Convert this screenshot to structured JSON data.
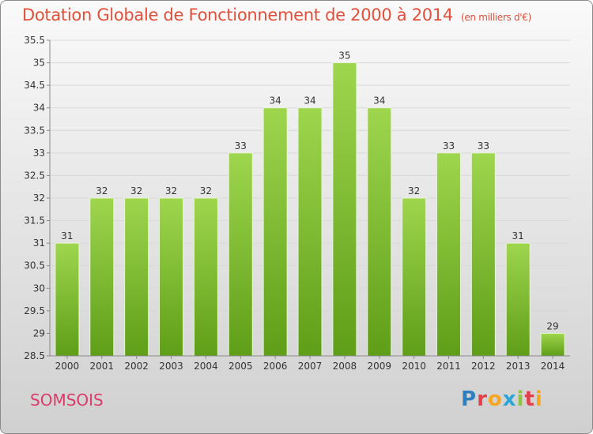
{
  "header": {
    "title": "Dotation Globale de Fonctionnement de 2000 à 2014",
    "unit": "(en milliers d'€)"
  },
  "footer": {
    "commune": "SOMSOIS",
    "brand": {
      "text": "Proxiti",
      "letters": [
        {
          "ch": "P",
          "color": "#2f7fc1"
        },
        {
          "ch": "r",
          "color": "#e2404a"
        },
        {
          "ch": "o",
          "color": "#f5a623"
        },
        {
          "ch": "x",
          "color": "#2aa6d6"
        },
        {
          "ch": "i",
          "color": "#8cc63f"
        },
        {
          "ch": "t",
          "color": "#e2404a"
        },
        {
          "ch": "i",
          "color": "#f5a623"
        }
      ]
    }
  },
  "colors": {
    "title": "#e0503a",
    "commune": "#d93c6a",
    "bar_top": "#9ed64e",
    "bar_bottom": "#5f9e18",
    "grid": "#d8d8d8",
    "axis": "#888888"
  },
  "chart_data": {
    "type": "bar",
    "categories": [
      "2000",
      "2001",
      "2002",
      "2003",
      "2004",
      "2005",
      "2006",
      "2007",
      "2008",
      "2009",
      "2010",
      "2011",
      "2012",
      "2013",
      "2014"
    ],
    "values": [
      31,
      32,
      32,
      32,
      32,
      33,
      34,
      34,
      35,
      34,
      32,
      33,
      33,
      31,
      29
    ],
    "value_labels": [
      "31",
      "32",
      "32",
      "32",
      "32",
      "33",
      "34",
      "34",
      "35",
      "34",
      "32",
      "33",
      "33",
      "31",
      "29"
    ],
    "ylim": [
      28.5,
      35.5
    ],
    "yticks": [
      28.5,
      29,
      29.5,
      30,
      30.5,
      31,
      31.5,
      32,
      32.5,
      33,
      33.5,
      34,
      34.5,
      35,
      35.5
    ],
    "ytick_labels": [
      "28.5",
      "29",
      "29.5",
      "30",
      "30.5",
      "31",
      "31.5",
      "32",
      "32.5",
      "33",
      "33.5",
      "34",
      "34.5",
      "35",
      "35.5"
    ],
    "grid": true,
    "legend": "none"
  }
}
